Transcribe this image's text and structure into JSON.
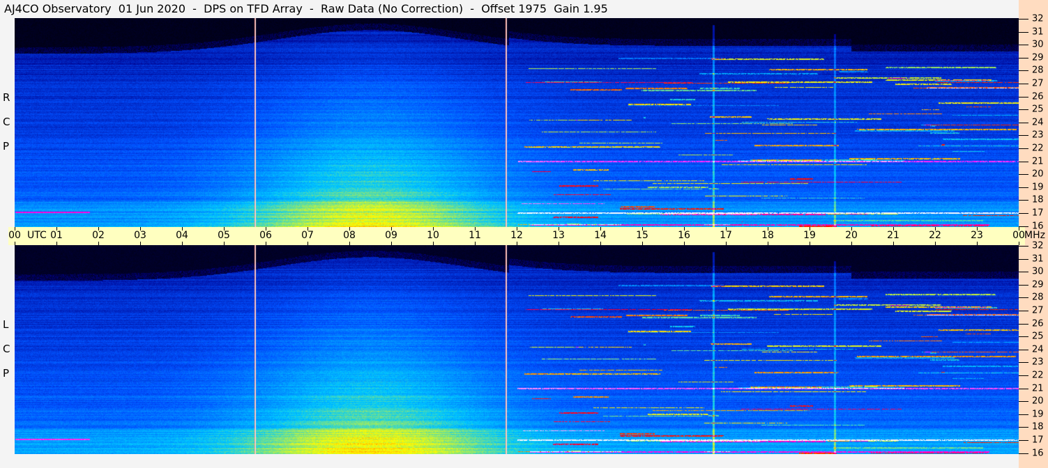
{
  "title": "AJ4CO Observatory  01 Jun 2020  -  DPS on TFD Array  -  Raw Data (No Correction)  -  Offset 1975  Gain 1.95",
  "chart_data": {
    "type": "heatmap",
    "panels": [
      {
        "name": "RCP",
        "label_letters": [
          "R",
          "C",
          "P"
        ]
      },
      {
        "name": "LCP",
        "label_letters": [
          "L",
          "C",
          "P"
        ]
      }
    ],
    "x_axis": {
      "unit_label": "UTC",
      "ticks": [
        "00",
        "01",
        "02",
        "03",
        "04",
        "05",
        "06",
        "07",
        "08",
        "09",
        "10",
        "11",
        "12",
        "13",
        "14",
        "15",
        "16",
        "17",
        "18",
        "19",
        "20",
        "21",
        "22",
        "23",
        "00"
      ],
      "range_hours": [
        0,
        24
      ]
    },
    "y_axis": {
      "unit_label": "MHz",
      "ticks": [
        "16",
        "17",
        "18",
        "19",
        "20",
        "21",
        "22",
        "23",
        "24",
        "25",
        "26",
        "27",
        "28",
        "29",
        "30",
        "31",
        "32"
      ],
      "range_mhz": [
        16,
        32
      ]
    },
    "colormap": [
      "#000000",
      "#00008b",
      "#0050ff",
      "#00c8ff",
      "#ffff00",
      "#ff0000",
      "#ff00ff",
      "#ffffff"
    ],
    "vertical_features_utc": [
      5.75,
      11.75,
      16.7,
      19.6
    ]
  }
}
